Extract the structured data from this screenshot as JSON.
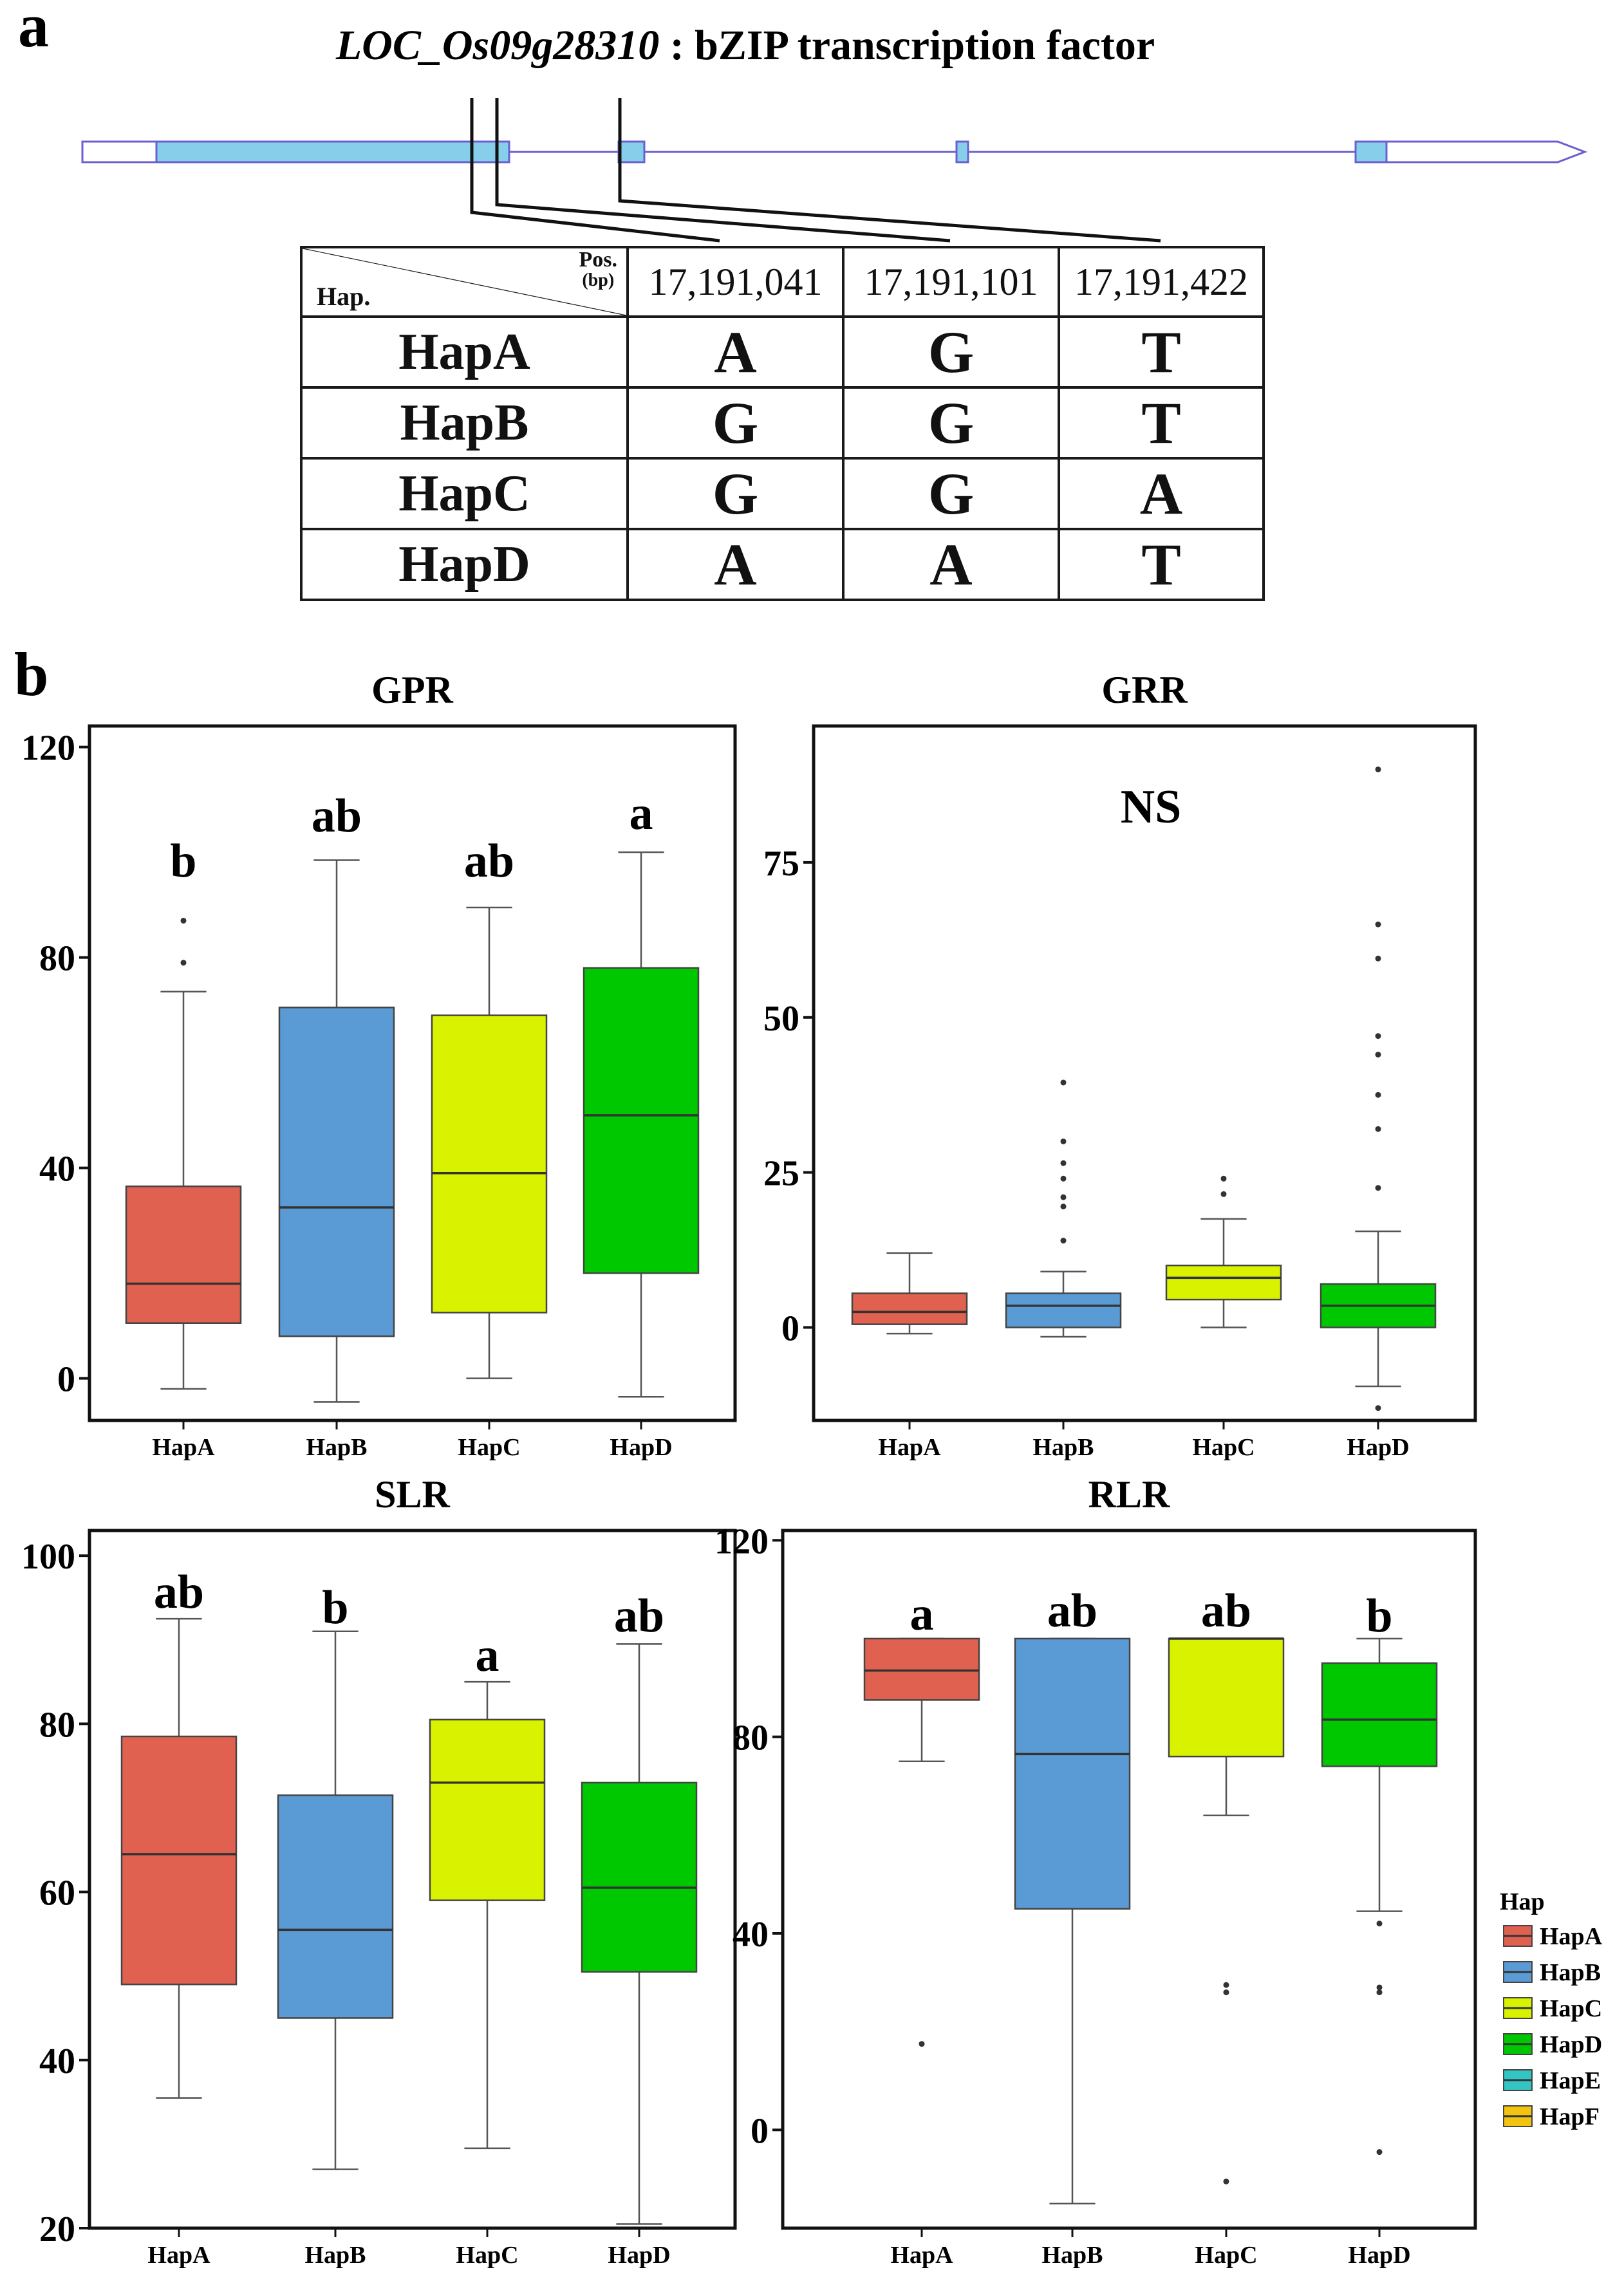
{
  "panel_a": {
    "label": "a",
    "gene_id": "LOC_Os09g28310",
    "gene_desc": ": bZIP transcription factor",
    "table": {
      "corner_pos": "Pos.",
      "corner_unit": "(bp)",
      "corner_hap": "Hap.",
      "positions": [
        "17,191,041",
        "17,191,101",
        "17,191,422"
      ],
      "rows": [
        {
          "hap": "HapA",
          "alleles": [
            "A",
            "G",
            "T"
          ]
        },
        {
          "hap": "HapB",
          "alleles": [
            "G",
            "G",
            "T"
          ]
        },
        {
          "hap": "HapC",
          "alleles": [
            "G",
            "G",
            "A"
          ]
        },
        {
          "hap": "HapD",
          "alleles": [
            "A",
            "A",
            "T"
          ]
        }
      ]
    }
  },
  "panel_b": {
    "label": "b"
  },
  "colors": {
    "HapA": "#e0614f",
    "HapB": "#5b9bd5",
    "HapC": "#d8f200",
    "HapD": "#00c800",
    "HapE": "#33c4c4",
    "HapF": "#f2c40f",
    "exon_fill": "#87ceeb",
    "gene_line": "#6b5fcf"
  },
  "legend": {
    "title": "Hap",
    "items": [
      "HapA",
      "HapB",
      "HapC",
      "HapD",
      "HapE",
      "HapF"
    ]
  },
  "chart_data": [
    {
      "type": "box",
      "title": "GPR",
      "ylim": [
        -8,
        124
      ],
      "yticks": [
        0,
        40,
        80,
        120
      ],
      "categories": [
        "HapA",
        "HapB",
        "HapC",
        "HapD"
      ],
      "boxes": [
        {
          "name": "HapA",
          "whisker_low": -2,
          "q1": 10.5,
          "median": 18,
          "q3": 36.5,
          "whisker_high": 73.5,
          "outliers": [
            79,
            87
          ]
        },
        {
          "name": "HapB",
          "whisker_low": -4.5,
          "q1": 8,
          "median": 32.5,
          "q3": 70.5,
          "whisker_high": 98.5,
          "outliers": []
        },
        {
          "name": "HapC",
          "whisker_low": 0,
          "q1": 12.5,
          "median": 39,
          "q3": 69,
          "whisker_high": 89.5,
          "outliers": []
        },
        {
          "name": "HapD",
          "whisker_low": -3.5,
          "q1": 20,
          "median": 50,
          "q3": 78,
          "whisker_high": 100,
          "outliers": []
        }
      ],
      "annotations": [
        "b",
        "ab",
        "ab",
        "a"
      ]
    },
    {
      "type": "box",
      "title": "GRR",
      "ylim": [
        -15,
        97
      ],
      "yticks": [
        0,
        25,
        50,
        75
      ],
      "categories": [
        "HapA",
        "HapB",
        "HapC",
        "HapD"
      ],
      "boxes": [
        {
          "name": "HapA",
          "whisker_low": -1,
          "q1": 0.5,
          "median": 2.5,
          "q3": 5.5,
          "whisker_high": 12,
          "outliers": []
        },
        {
          "name": "HapB",
          "whisker_low": -1.5,
          "q1": 0,
          "median": 3.5,
          "q3": 5.5,
          "whisker_high": 9,
          "outliers": [
            14,
            19.5,
            21,
            24,
            26.5,
            30,
            39.5
          ]
        },
        {
          "name": "HapC",
          "whisker_low": 0,
          "q1": 4.5,
          "median": 8,
          "q3": 10,
          "whisker_high": 17.5,
          "outliers": [
            21.5,
            24
          ]
        },
        {
          "name": "HapD",
          "whisker_low": -9.5,
          "q1": 0,
          "median": 3.5,
          "q3": 7,
          "whisker_high": 15.5,
          "outliers": [
            -13,
            22.5,
            32,
            37.5,
            44,
            47,
            59.5,
            65,
            90
          ]
        }
      ],
      "annotations": [
        "NS"
      ]
    },
    {
      "type": "box",
      "title": "SLR",
      "ylim": [
        20,
        103
      ],
      "yticks": [
        20,
        40,
        60,
        80,
        100
      ],
      "categories": [
        "HapA",
        "HapB",
        "HapC",
        "HapD"
      ],
      "boxes": [
        {
          "name": "HapA",
          "whisker_low": 35.5,
          "q1": 49,
          "median": 64.5,
          "q3": 78.5,
          "whisker_high": 92.5,
          "outliers": []
        },
        {
          "name": "HapB",
          "whisker_low": 27,
          "q1": 45,
          "median": 55.5,
          "q3": 71.5,
          "whisker_high": 91,
          "outliers": []
        },
        {
          "name": "HapC",
          "whisker_low": 29.5,
          "q1": 59,
          "median": 73,
          "q3": 80.5,
          "whisker_high": 85,
          "outliers": []
        },
        {
          "name": "HapD",
          "whisker_low": 20.5,
          "q1": 50.5,
          "median": 60.5,
          "q3": 73,
          "whisker_high": 89.5,
          "outliers": []
        }
      ],
      "annotations": [
        "ab",
        "b",
        "a",
        "ab"
      ]
    },
    {
      "type": "box",
      "title": "RLR",
      "ylim": [
        -20,
        122
      ],
      "yticks": [
        0,
        40,
        80,
        120
      ],
      "categories": [
        "HapA",
        "HapB",
        "HapC",
        "HapD"
      ],
      "boxes": [
        {
          "name": "HapA",
          "whisker_low": 75,
          "q1": 87.5,
          "median": 93.5,
          "q3": 100,
          "whisker_high": 100,
          "outliers": [
            17.5
          ]
        },
        {
          "name": "HapB",
          "whisker_low": -15,
          "q1": 45,
          "median": 76.5,
          "q3": 100,
          "whisker_high": 100,
          "outliers": []
        },
        {
          "name": "HapC",
          "whisker_low": 64,
          "q1": 76,
          "median": 100,
          "q3": 100,
          "whisker_high": 100,
          "outliers": [
            -10.5,
            28,
            29.5
          ]
        },
        {
          "name": "HapD",
          "whisker_low": 44.5,
          "q1": 74,
          "median": 83.5,
          "q3": 95,
          "whisker_high": 100,
          "outliers": [
            -4.5,
            28,
            29,
            42
          ]
        }
      ],
      "annotations": [
        "a",
        "ab",
        "ab",
        "b"
      ]
    }
  ]
}
